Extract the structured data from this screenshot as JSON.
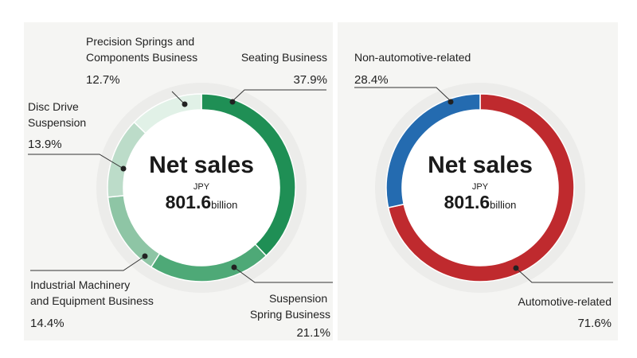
{
  "chart_data": [
    {
      "type": "pie",
      "center": {
        "title": "Net sales",
        "unit": "JPY",
        "value": "801.6",
        "suffix": "billion"
      },
      "slices": [
        {
          "name": "Seating Business",
          "value": 37.9,
          "pct_label": "37.9%",
          "color": "#1f8f55"
        },
        {
          "name": "Suspension Spring Business",
          "value": 21.1,
          "pct_label": "21.1%",
          "color": "#4ea977"
        },
        {
          "name": "Industrial Machinery and Equipment Business",
          "value": 14.4,
          "pct_label": "14.4%",
          "color": "#8ec5a5"
        },
        {
          "name": "Disc Drive Suspension",
          "value": 13.9,
          "pct_label": "13.9%",
          "color": "#bcdcc9"
        },
        {
          "name": "Precision Springs and Components Business",
          "value": 12.7,
          "pct_label": "12.7%",
          "color": "#e1f1e7"
        }
      ],
      "labels": {
        "seating": [
          "Seating Business"
        ],
        "suspension": [
          "Suspension",
          "Spring Business"
        ],
        "industrial": [
          "Industrial Machinery",
          "and Equipment Business"
        ],
        "disc": [
          "Disc Drive",
          "Suspension"
        ],
        "precision": [
          "Precision Springs and",
          "Components Business"
        ]
      }
    },
    {
      "type": "pie",
      "center": {
        "title": "Net sales",
        "unit": "JPY",
        "value": "801.6",
        "suffix": "billion"
      },
      "slices": [
        {
          "name": "Automotive-related",
          "value": 71.6,
          "pct_label": "71.6%",
          "color": "#bf2a2e"
        },
        {
          "name": "Non-automotive-related",
          "value": 28.4,
          "pct_label": "28.4%",
          "color": "#246bb0"
        }
      ],
      "labels": {
        "automotive": [
          "Automotive-related"
        ],
        "nonauto": [
          "Non-automotive-related"
        ]
      }
    }
  ]
}
